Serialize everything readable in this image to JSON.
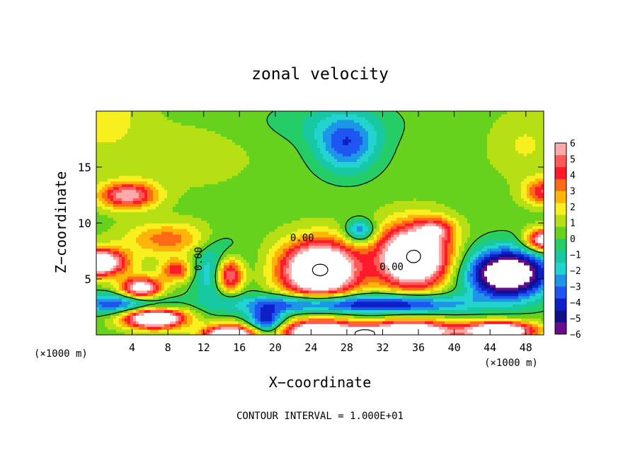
{
  "chart_data": {
    "type": "heatmap",
    "title": "zonal velocity",
    "xlabel": "X−coordinate",
    "ylabel": "Z−coordinate",
    "x_unit_left": "(×1000 m)",
    "x_unit_right": "(×1000 m)",
    "footer": "CONTOUR INTERVAL = 1.000E+01",
    "xlim": [
      0,
      50
    ],
    "ylim": [
      0,
      20
    ],
    "x_ticks": [
      {
        "value": 4,
        "label": "4"
      },
      {
        "value": 8,
        "label": "8"
      },
      {
        "value": 12,
        "label": "12"
      },
      {
        "value": 16,
        "label": "16"
      },
      {
        "value": 20,
        "label": "20"
      },
      {
        "value": 24,
        "label": "24"
      },
      {
        "value": 28,
        "label": "28"
      },
      {
        "value": 32,
        "label": "32"
      },
      {
        "value": 36,
        "label": "36"
      },
      {
        "value": 40,
        "label": "40"
      },
      {
        "value": 44,
        "label": "44"
      },
      {
        "value": 48,
        "label": "48"
      }
    ],
    "y_ticks": [
      {
        "value": 5,
        "label": "5"
      },
      {
        "value": 10,
        "label": "10"
      },
      {
        "value": 15,
        "label": "15"
      }
    ],
    "colorbar": {
      "range": [
        -6,
        6
      ],
      "labels": [
        {
          "value": 6,
          "label": "6"
        },
        {
          "value": 5,
          "label": "5"
        },
        {
          "value": 4,
          "label": "4"
        },
        {
          "value": 3,
          "label": "3"
        },
        {
          "value": 2,
          "label": "2"
        },
        {
          "value": 1,
          "label": "1"
        },
        {
          "value": 0,
          "label": "0"
        },
        {
          "value": -1,
          "label": "−1"
        },
        {
          "value": -2,
          "label": "−2"
        },
        {
          "value": -3,
          "label": "−3"
        },
        {
          "value": -4,
          "label": "−4"
        },
        {
          "value": -5,
          "label": "−5"
        },
        {
          "value": -6,
          "label": "−6"
        }
      ],
      "colors": [
        "#6a0a8e",
        "#10108a",
        "#1020c8",
        "#1f55f0",
        "#1e96e8",
        "#23d3cf",
        "#18c8a2",
        "#25cd66",
        "#66d21e",
        "#b6df14",
        "#f7ef1e",
        "#ffb40a",
        "#ff6a14",
        "#ff1a2a",
        "#ff5a5a",
        "#ffaaaa"
      ]
    },
    "background_level": 0.4,
    "features": [
      {
        "x": 0.0,
        "y": 6.5,
        "sx": 3.2,
        "sy": 1.2,
        "amp": 9
      },
      {
        "x": 3.5,
        "y": 12.5,
        "sx": 3.2,
        "sy": 1.2,
        "amp": 5.5
      },
      {
        "x": 5.0,
        "y": 4.2,
        "sx": 2.2,
        "sy": 1.0,
        "amp": 7
      },
      {
        "x": 6.5,
        "y": 1.5,
        "sx": 3.4,
        "sy": 0.9,
        "amp": 9
      },
      {
        "x": 8.0,
        "y": 8.6,
        "sx": 4.8,
        "sy": 1.5,
        "amp": 3
      },
      {
        "x": 9.0,
        "y": 5.8,
        "sx": 1.8,
        "sy": 1.0,
        "amp": 4
      },
      {
        "x": 2.5,
        "y": 2.8,
        "sx": 5.0,
        "sy": 0.9,
        "amp": -4.2
      },
      {
        "x": 14.8,
        "y": 5.4,
        "sx": 1.7,
        "sy": 1.8,
        "amp": 9
      },
      {
        "x": 14.0,
        "y": 5.6,
        "sx": 2.6,
        "sy": 2.6,
        "amp": -5
      },
      {
        "x": 15.0,
        "y": 0.0,
        "sx": 3.0,
        "sy": 0.9,
        "amp": 9
      },
      {
        "x": 19.0,
        "y": 1.2,
        "sx": 2.0,
        "sy": 1.2,
        "amp": -5
      },
      {
        "x": 25.0,
        "y": 5.8,
        "sx": 4.3,
        "sy": 2.6,
        "amp": 10
      },
      {
        "x": 25.0,
        "y": 0.3,
        "sx": 4.3,
        "sy": 1.0,
        "amp": 9
      },
      {
        "x": 24.0,
        "y": 2.8,
        "sx": 8.0,
        "sy": 0.9,
        "amp": -5
      },
      {
        "x": 30.0,
        "y": 0.0,
        "sx": 1.4,
        "sy": 0.6,
        "amp": 8
      },
      {
        "x": 35.5,
        "y": 7.0,
        "sx": 4.0,
        "sy": 2.8,
        "amp": 10
      },
      {
        "x": 35.0,
        "y": 0.3,
        "sx": 4.8,
        "sy": 1.0,
        "amp": 9
      },
      {
        "x": 35.0,
        "y": 2.8,
        "sx": 7.0,
        "sy": 0.9,
        "amp": -4.5
      },
      {
        "x": 29.5,
        "y": 9.3,
        "sx": 1.6,
        "sy": 1.0,
        "amp": -4
      },
      {
        "x": 46.0,
        "y": 5.5,
        "sx": 4.5,
        "sy": 2.2,
        "amp": -9
      },
      {
        "x": 50.0,
        "y": 8.5,
        "sx": 2.0,
        "sy": 1.0,
        "amp": 7
      },
      {
        "x": 50.0,
        "y": 12.8,
        "sx": 2.2,
        "sy": 1.2,
        "amp": 4
      },
      {
        "x": 45.0,
        "y": 0.4,
        "sx": 4.0,
        "sy": 0.8,
        "amp": 9
      },
      {
        "x": 38.0,
        "y": 9.5,
        "sx": 2.0,
        "sy": 1.0,
        "amp": 3
      },
      {
        "x": 28.0,
        "y": 17.0,
        "sx": 3.5,
        "sy": 2.5,
        "amp": -3.8
      },
      {
        "x": 26.0,
        "y": 19.0,
        "sx": 8.0,
        "sy": 2.0,
        "amp": -1.0
      },
      {
        "x": 0.0,
        "y": 20.0,
        "sx": 5.0,
        "sy": 3.5,
        "amp": 1.8
      },
      {
        "x": 48.0,
        "y": 17.0,
        "sx": 4.0,
        "sy": 3.0,
        "amp": 1.2
      },
      {
        "x": 10.0,
        "y": 16.0,
        "sx": 8.0,
        "sy": 3.0,
        "amp": 0.8
      }
    ],
    "contour_labels": [
      {
        "x": 23.0,
        "y": 8.4,
        "text": "0.00"
      },
      {
        "x": 33.0,
        "y": 5.8,
        "text": "0.00"
      },
      {
        "x": 11.8,
        "y": 6.8,
        "text": "0.00",
        "rotate": -90
      }
    ]
  }
}
